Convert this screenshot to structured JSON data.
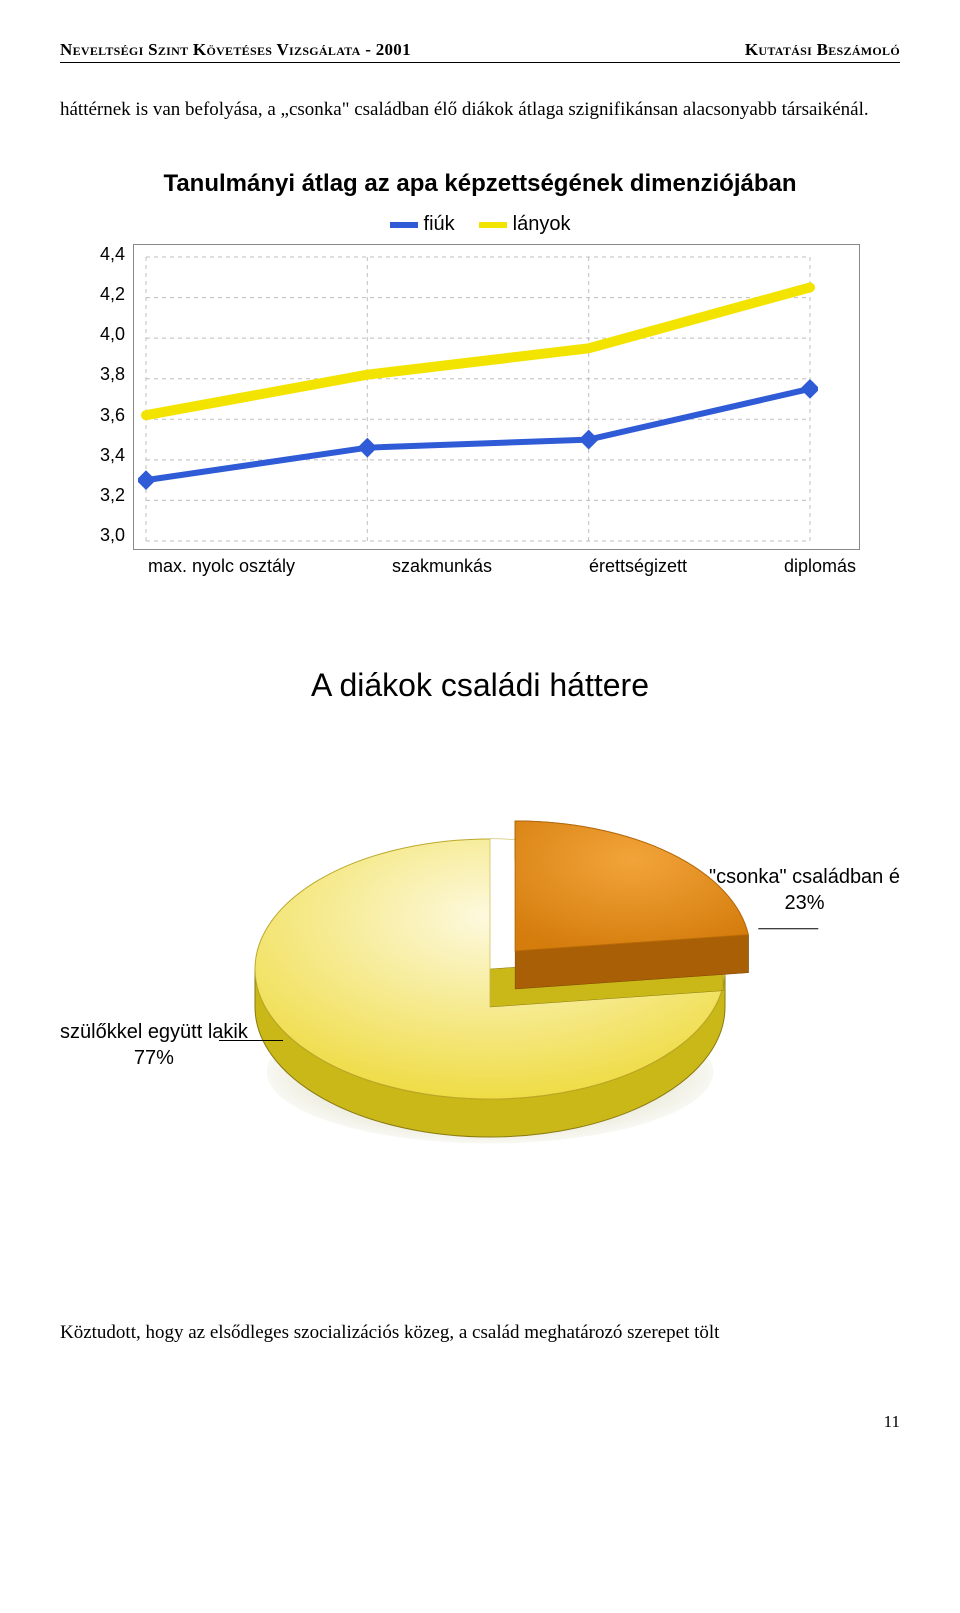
{
  "header": {
    "left": "Neveltségi Szint Követéses Vizsgálata - 2001",
    "right": "Kutatási Beszámoló"
  },
  "paragraph_top": "háttérnek is van befolyása, a „csonka\" családban élő diákok átlaga szignifikánsan alacsonyabb társaikénál.",
  "line_chart": {
    "type": "line",
    "title": "Tanulmányi átlag az apa képzettségének dimenziójában",
    "legend": [
      {
        "label": "fiúk",
        "color": "#2f5bd7"
      },
      {
        "label": "lányok",
        "color": "#f3e400"
      }
    ],
    "y_ticks": [
      "4,4",
      "4,2",
      "4,0",
      "3,8",
      "3,6",
      "3,4",
      "3,2",
      "3,0"
    ],
    "y_min": 3.0,
    "y_max": 4.4,
    "x_categories": [
      "max. nyolc osztály",
      "szakmunkás",
      "érettségizett",
      "diplomás"
    ],
    "series": [
      {
        "name": "fiúk",
        "color": "#2f5bd7",
        "values": [
          3.3,
          3.46,
          3.5,
          3.75
        ],
        "width": 6,
        "marker_size": 7
      },
      {
        "name": "lányok",
        "color": "#f3e400",
        "values": [
          3.62,
          3.82,
          3.95,
          4.25
        ],
        "width": 10,
        "marker_size": 0
      }
    ],
    "grid_color": "#bfbfbf",
    "background_color": "#ffffff",
    "label_fontsize": 18,
    "title_fontsize": 24
  },
  "pie_chart": {
    "type": "pie",
    "title": "A diákok családi háttere",
    "slices": [
      {
        "label_line1": "szülőkkel együtt lakik",
        "label_line2": "77%",
        "value": 77,
        "fill_top": "#fdf9df",
        "fill_bottom": "#eeda3a",
        "side": "#c9b818"
      },
      {
        "label_line1": "\"csonka\" családban é",
        "label_line2": "23%",
        "value": 23,
        "fill_top": "#f2a43a",
        "fill_bottom": "#d47c0c",
        "side": "#a85f06"
      }
    ],
    "shadow_color": "#7a7a18",
    "label_fontsize": 20,
    "title_fontsize": 32
  },
  "paragraph_bottom": "Köztudott, hogy az elsődleges szocializációs közeg, a család meghatározó szerepet tölt",
  "page_number": "11"
}
